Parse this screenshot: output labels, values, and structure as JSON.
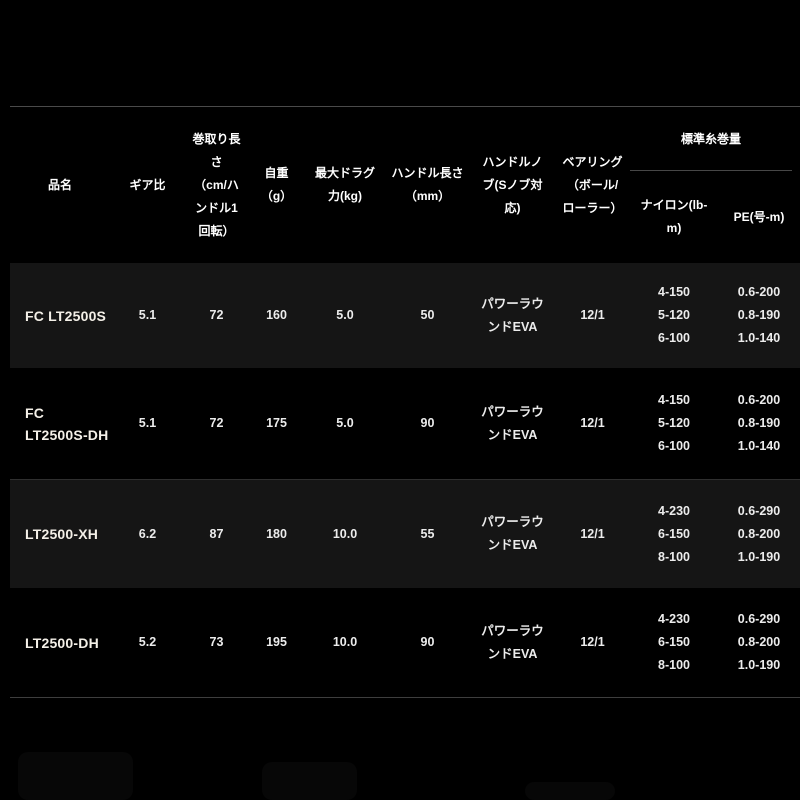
{
  "colors": {
    "background": "#000000",
    "row_stripe": "#151515",
    "divider_top": "#4a4a4a",
    "divider_bottom": "#3e3e3e",
    "text": "#ececec"
  },
  "table": {
    "header": {
      "product_name": "品名",
      "gear_ratio": "ギア比",
      "retrieve_per_handle_turn": [
        "巻取り長",
        "さ",
        "（cm/ハ",
        "ンドル1",
        "回転）"
      ],
      "weight": [
        "自重",
        "（g）"
      ],
      "max_drag": [
        "最大ドラグ",
        "力(kg)"
      ],
      "handle_length": [
        "ハンドル長さ",
        "（mm）"
      ],
      "handle_knob": [
        "ハンドルノ",
        "ブ(Sノブ対",
        "応)"
      ],
      "bearings": [
        "ベアリング",
        "（ボール/",
        "ローラー）"
      ],
      "line_capacity_group": "標準糸巻量",
      "nylon": [
        "ナイロン(lb-",
        "m)"
      ],
      "pe": "PE(号-m)"
    },
    "rows": [
      {
        "product_name": "FC LT2500S",
        "gear_ratio": "5.1",
        "retrieve": "72",
        "weight": "160",
        "max_drag": "5.0",
        "handle_length": "50",
        "handle_knob": "パワーラウンドEVA",
        "bearings": "12/1",
        "nylon": [
          "4-150",
          "5-120",
          "6-100"
        ],
        "pe": [
          "0.6-200",
          "0.8-190",
          "1.0-140"
        ]
      },
      {
        "product_name": "FC LT2500S-DH",
        "gear_ratio": "5.1",
        "retrieve": "72",
        "weight": "175",
        "max_drag": "5.0",
        "handle_length": "90",
        "handle_knob": "パワーラウンドEVA",
        "bearings": "12/1",
        "nylon": [
          "4-150",
          "5-120",
          "6-100"
        ],
        "pe": [
          "0.6-200",
          "0.8-190",
          "1.0-140"
        ]
      },
      {
        "product_name": "LT2500-XH",
        "gear_ratio": "6.2",
        "retrieve": "87",
        "weight": "180",
        "max_drag": "10.0",
        "handle_length": "55",
        "handle_knob": "パワーラウンドEVA",
        "bearings": "12/1",
        "nylon": [
          "4-230",
          "6-150",
          "8-100"
        ],
        "pe": [
          "0.6-290",
          "0.8-200",
          "1.0-190"
        ]
      },
      {
        "product_name": "LT2500-DH",
        "gear_ratio": "5.2",
        "retrieve": "73",
        "weight": "195",
        "max_drag": "10.0",
        "handle_length": "90",
        "handle_knob": "パワーラウンドEVA",
        "bearings": "12/1",
        "nylon": [
          "4-230",
          "6-150",
          "8-100"
        ],
        "pe": [
          "0.6-290",
          "0.8-200",
          "1.0-190"
        ]
      }
    ]
  }
}
